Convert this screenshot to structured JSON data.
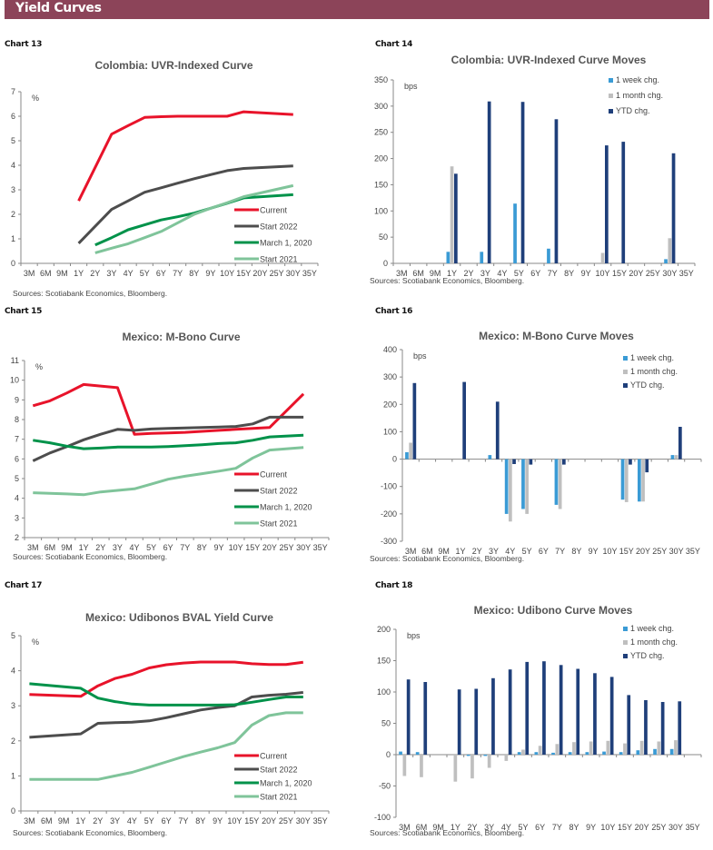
{
  "header": {
    "title": "Yield Curves",
    "color": "#8c4459"
  },
  "colors": {
    "current": "#e8132a",
    "start2022": "#4d4d4d",
    "march2020": "#00924a",
    "start2021": "#7fc49a",
    "week": "#3a9bd5",
    "month": "#bfbfbf",
    "ytd": "#1f3f7a"
  },
  "chart_data": [
    {
      "id": "chart13",
      "label": "Chart 13",
      "type": "line",
      "title": "Colombia: UVR-Indexed Curve",
      "unit": "%",
      "source": "Sources: Scotiabank Economics, Bloomberg.",
      "categories": [
        "3M",
        "6M",
        "9M",
        "1Y",
        "2Y",
        "3Y",
        "4Y",
        "5Y",
        "6Y",
        "7Y",
        "8Y",
        "9Y",
        "10Y",
        "15Y",
        "20Y",
        "25Y",
        "30Y",
        "35Y"
      ],
      "ylim": [
        0,
        7
      ],
      "yticks": [
        0,
        1,
        2,
        3,
        4,
        5,
        6,
        7
      ],
      "legend": "bottom-right",
      "series": [
        {
          "name": "Current",
          "key": "current",
          "values": [
            null,
            null,
            null,
            2.55,
            null,
            5.27,
            5.62,
            5.95,
            5.98,
            6.0,
            6.0,
            6.0,
            6.0,
            6.18,
            null,
            null,
            6.07,
            null
          ]
        },
        {
          "name": "Start 2022",
          "key": "start2022",
          "values": [
            null,
            null,
            null,
            0.82,
            null,
            2.2,
            2.55,
            2.9,
            3.08,
            3.27,
            3.45,
            3.62,
            3.78,
            3.87,
            null,
            null,
            3.97,
            null
          ]
        },
        {
          "name": "March 1, 2020",
          "key": "march2020",
          "values": [
            null,
            null,
            null,
            null,
            0.75,
            1.05,
            1.37,
            1.57,
            1.77,
            1.9,
            2.05,
            2.25,
            2.45,
            2.67,
            null,
            null,
            2.8,
            null
          ]
        },
        {
          "name": "Start 2021",
          "key": "start2021",
          "values": [
            null,
            null,
            null,
            null,
            0.43,
            0.62,
            0.8,
            1.05,
            1.3,
            1.65,
            2.0,
            2.25,
            2.47,
            2.72,
            null,
            null,
            3.17,
            null
          ]
        }
      ]
    },
    {
      "id": "chart14",
      "label": "Chart 14",
      "type": "bar",
      "title": "Colombia: UVR-Indexed Curve Moves",
      "unit": "bps",
      "source": "Sources: Scotiabank Economics, Bloomberg.",
      "categories": [
        "3M",
        "6M",
        "9M",
        "1Y",
        "2Y",
        "3Y",
        "4Y",
        "5Y",
        "6Y",
        "7Y",
        "8Y",
        "9Y",
        "10Y",
        "15Y",
        "20Y",
        "25Y",
        "30Y",
        "35Y"
      ],
      "ylim": [
        0,
        350
      ],
      "yticks": [
        0,
        50,
        100,
        150,
        200,
        250,
        300,
        350
      ],
      "legend": "top-right",
      "series": [
        {
          "name": "1 week chg.",
          "key": "week",
          "values": [
            null,
            null,
            null,
            22,
            null,
            22,
            null,
            114,
            null,
            28,
            null,
            null,
            null,
            null,
            null,
            null,
            8,
            null
          ]
        },
        {
          "name": "1 month chg.",
          "key": "month",
          "values": [
            null,
            null,
            null,
            185,
            null,
            null,
            null,
            null,
            null,
            null,
            null,
            null,
            20,
            null,
            null,
            null,
            48,
            null
          ]
        },
        {
          "name": "YTD chg.",
          "key": "ytd",
          "values": [
            null,
            null,
            null,
            171,
            null,
            309,
            null,
            308,
            null,
            275,
            null,
            null,
            225,
            232,
            null,
            null,
            210,
            null
          ]
        }
      ]
    },
    {
      "id": "chart15",
      "label": "Chart 15",
      "type": "line",
      "title": "Mexico: M-Bono Curve",
      "unit": "%",
      "source": "Sources: Scotiabank Economics, Bloomberg.",
      "categories": [
        "3M",
        "6M",
        "9M",
        "1Y",
        "2Y",
        "3Y",
        "4Y",
        "5Y",
        "6Y",
        "7Y",
        "8Y",
        "9Y",
        "10Y",
        "15Y",
        "20Y",
        "25Y",
        "30Y",
        "35Y"
      ],
      "ylim": [
        2,
        11
      ],
      "yticks": [
        2,
        3,
        4,
        5,
        6,
        7,
        8,
        9,
        10,
        11
      ],
      "legend": "bottom-right",
      "series": [
        {
          "name": "Current",
          "key": "current",
          "values": [
            8.7,
            8.95,
            9.35,
            9.78,
            null,
            9.62,
            7.25,
            7.3,
            7.32,
            7.35,
            7.4,
            7.45,
            7.5,
            7.55,
            7.6,
            null,
            9.3,
            null
          ]
        },
        {
          "name": "Start 2022",
          "key": "start2022",
          "values": [
            5.9,
            6.3,
            6.62,
            6.97,
            7.25,
            7.5,
            7.45,
            7.52,
            7.55,
            7.57,
            7.6,
            7.62,
            7.65,
            7.78,
            8.12,
            null,
            8.12,
            null
          ]
        },
        {
          "name": "March 1, 2020",
          "key": "march2020",
          "values": [
            6.95,
            6.82,
            6.65,
            6.52,
            6.55,
            6.6,
            6.6,
            6.6,
            6.63,
            6.67,
            6.72,
            6.78,
            6.82,
            6.95,
            7.12,
            null,
            7.2,
            null
          ]
        },
        {
          "name": "Start 2021",
          "key": "start2021",
          "values": [
            4.28,
            4.25,
            4.22,
            4.18,
            4.32,
            4.4,
            4.48,
            4.72,
            4.97,
            5.12,
            5.25,
            5.38,
            5.52,
            6.05,
            6.45,
            null,
            6.58,
            null
          ]
        }
      ]
    },
    {
      "id": "chart16",
      "label": "Chart 16",
      "type": "bar",
      "title": "Mexico: M-Bono Curve Moves",
      "unit": "bps",
      "source": "Sources: Scotiabank Economics, Bloomberg.",
      "categories": [
        "3M",
        "6M",
        "9M",
        "1Y",
        "2Y",
        "3Y",
        "4Y",
        "5Y",
        "6Y",
        "7Y",
        "8Y",
        "9Y",
        "10Y",
        "15Y",
        "20Y",
        "25Y",
        "30Y",
        "35Y"
      ],
      "ylim": [
        -300,
        400
      ],
      "yticks": [
        -300,
        -200,
        -100,
        0,
        100,
        200,
        300,
        400
      ],
      "legend": "top-right",
      "series": [
        {
          "name": "1 week chg.",
          "key": "week",
          "values": [
            25,
            null,
            null,
            null,
            null,
            15,
            -200,
            -182,
            null,
            -167,
            null,
            null,
            null,
            -148,
            -155,
            null,
            15,
            null
          ]
        },
        {
          "name": "1 month chg.",
          "key": "month",
          "values": [
            60,
            null,
            null,
            null,
            null,
            null,
            -228,
            -200,
            null,
            -182,
            null,
            null,
            null,
            -157,
            -155,
            null,
            15,
            null
          ]
        },
        {
          "name": "YTD chg.",
          "key": "ytd",
          "values": [
            278,
            null,
            null,
            282,
            null,
            210,
            -18,
            -20,
            null,
            -20,
            null,
            null,
            null,
            -20,
            -48,
            null,
            118,
            null
          ]
        }
      ]
    },
    {
      "id": "chart17",
      "label": "Chart 17",
      "type": "line",
      "title": "Mexico: Udibonos BVAL Yield Curve",
      "unit": "%",
      "source": "Sources: Scotiabank Economics, Bloomberg.",
      "categories": [
        "3M",
        "6M",
        "9M",
        "1Y",
        "2Y",
        "3Y",
        "4Y",
        "5Y",
        "6Y",
        "7Y",
        "8Y",
        "9Y",
        "10Y",
        "15Y",
        "20Y",
        "25Y",
        "30Y",
        "35Y"
      ],
      "ylim": [
        0,
        5
      ],
      "yticks": [
        0,
        1,
        2,
        3,
        4,
        5
      ],
      "legend": "bottom-right",
      "series": [
        {
          "name": "Current",
          "key": "current",
          "values": [
            3.32,
            null,
            null,
            3.27,
            3.57,
            3.78,
            3.9,
            4.08,
            4.17,
            4.22,
            4.25,
            4.25,
            4.25,
            4.2,
            4.18,
            4.18,
            4.24,
            null
          ]
        },
        {
          "name": "Start 2022",
          "key": "start2022",
          "values": [
            2.1,
            null,
            null,
            2.2,
            2.5,
            2.52,
            2.53,
            2.57,
            2.66,
            2.77,
            2.88,
            2.95,
            3.0,
            3.25,
            3.3,
            3.33,
            3.38,
            null
          ]
        },
        {
          "name": "March 1, 2020",
          "key": "march2020",
          "values": [
            3.63,
            null,
            null,
            3.5,
            3.22,
            3.12,
            3.05,
            3.02,
            3.02,
            3.02,
            3.02,
            3.02,
            3.03,
            3.1,
            3.18,
            3.25,
            3.25,
            null
          ]
        },
        {
          "name": "Start 2021",
          "key": "start2021",
          "values": [
            0.9,
            null,
            null,
            0.9,
            0.9,
            1.0,
            1.1,
            1.25,
            1.4,
            1.55,
            1.68,
            1.8,
            1.95,
            2.45,
            2.72,
            2.8,
            2.8,
            null
          ]
        }
      ]
    },
    {
      "id": "chart18",
      "label": "Chart 18",
      "type": "bar",
      "title": "Mexico: Udibono Curve Moves",
      "unit": "bps",
      "source": "Sources: Scotiabank Economics, Bloomberg.",
      "categories": [
        "3M",
        "6M",
        "9M",
        "1Y",
        "2Y",
        "3Y",
        "4Y",
        "5Y",
        "6Y",
        "7Y",
        "8Y",
        "9Y",
        "10Y",
        "15Y",
        "20Y",
        "25Y",
        "30Y",
        "35Y"
      ],
      "ylim": [
        -100,
        200
      ],
      "yticks": [
        -100,
        -50,
        0,
        50,
        100,
        150,
        200
      ],
      "legend": "top-right",
      "series": [
        {
          "name": "1 week chg.",
          "key": "week",
          "values": [
            5,
            4,
            null,
            null,
            -2,
            -2,
            null,
            4,
            4,
            3,
            4,
            4,
            5,
            4,
            7,
            9,
            9,
            null
          ]
        },
        {
          "name": "1 month chg.",
          "key": "month",
          "values": [
            -34,
            -36,
            null,
            -43,
            -38,
            -21,
            -10,
            8,
            14,
            17,
            20,
            21,
            22,
            18,
            22,
            21,
            23,
            null
          ]
        },
        {
          "name": "YTD chg.",
          "key": "ytd",
          "values": [
            120,
            116,
            null,
            104,
            105,
            122,
            136,
            148,
            149,
            143,
            137,
            130,
            124,
            95,
            87,
            84,
            85,
            null
          ]
        }
      ]
    }
  ]
}
